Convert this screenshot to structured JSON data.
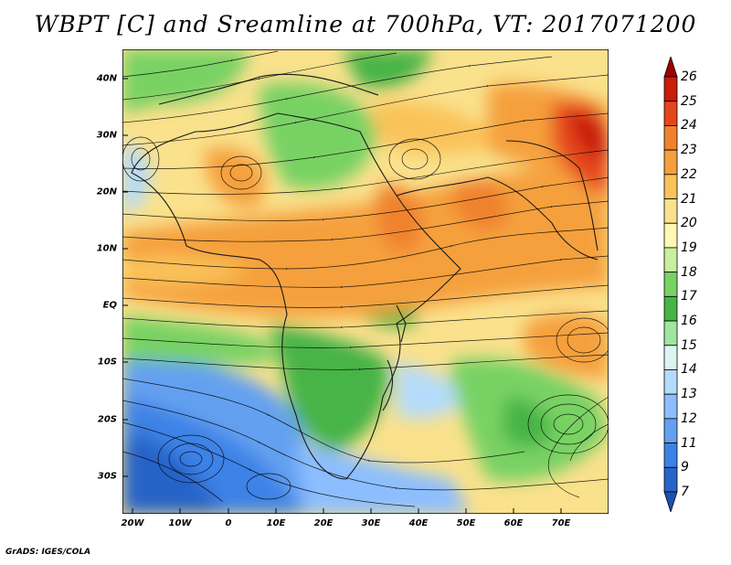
{
  "title": "WBPT [C] and Sreamline at 700hPa, VT: 2017071200",
  "credit": "GrADS: IGES/COLA",
  "map": {
    "lat_labels": [
      "40N",
      "30N",
      "20N",
      "10N",
      "EQ",
      "10S",
      "20S",
      "30S"
    ],
    "lon_labels": [
      "20W",
      "10W",
      "0",
      "10E",
      "20E",
      "30E",
      "40E",
      "50E",
      "60E",
      "70E"
    ],
    "projection": "lat-lon",
    "coastlines": true,
    "streamlines": true,
    "field": "WBPT",
    "units": "C",
    "level": "700hPa"
  },
  "colorbar": {
    "labels": [
      "26",
      "25",
      "24",
      "23",
      "22",
      "21",
      "20",
      "19",
      "18",
      "17",
      "16",
      "15",
      "14",
      "13",
      "12",
      "11",
      "9",
      "7"
    ],
    "colors": [
      "#a00000",
      "#c81e0a",
      "#e6461e",
      "#f0822d",
      "#f5a03c",
      "#fac35a",
      "#fae18c",
      "#fff8b4",
      "#c8f0a0",
      "#78d264",
      "#46b446",
      "#a0e6a0",
      "#dcf5f0",
      "#b4dcfa",
      "#8cbeff",
      "#64a0f0",
      "#3c82e6",
      "#2864c8",
      "#1e50b4"
    ]
  }
}
